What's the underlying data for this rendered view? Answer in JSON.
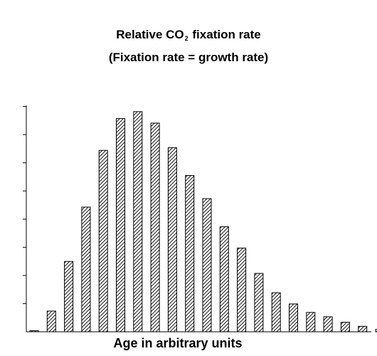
{
  "chart_data": {
    "type": "bar",
    "title_prefix": "Relative CO",
    "title_subscript": "2",
    "title_suffix": " fixation rate",
    "subtitle": "(Fixation rate = growth rate)",
    "xlabel": "Age in arbitrary units",
    "ylabel": "",
    "categories": [
      "",
      "",
      "",
      "",
      "",
      "",
      "",
      "",
      "",
      "",
      "",
      "",
      "",
      "",
      "",
      "",
      "",
      "",
      "",
      "",
      ""
    ],
    "values": [
      0.4,
      7.6,
      25.8,
      45.7,
      66.5,
      78.2,
      80.7,
      76.5,
      67.5,
      57.3,
      48.8,
      38.5,
      30.7,
      21.4,
      14.3,
      10.2,
      7.1,
      5.5,
      3.5,
      2.0,
      0.9
    ],
    "ylim": [
      0,
      83
    ],
    "y_tick_count": 8,
    "pattern": "diagonal-hatch",
    "grid": false,
    "legend": "none"
  }
}
